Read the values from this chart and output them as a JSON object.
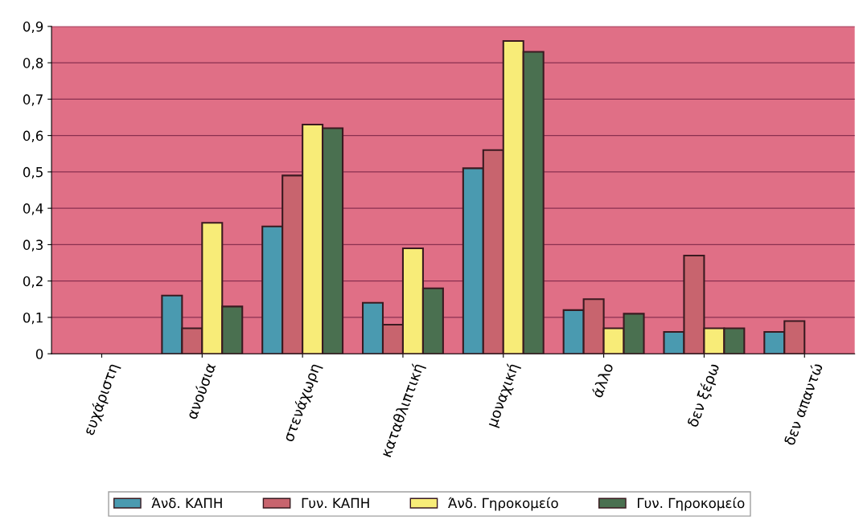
{
  "chart_data": {
    "type": "bar",
    "categories": [
      "ευχάριστη",
      "ανούσια",
      "στενάχωρη",
      "καταθλιπτική",
      "μοναχική",
      "άλλο",
      "δεν ξέρω",
      "δεν απαντώ"
    ],
    "series": [
      {
        "name": "Άνδ. ΚΑΠΗ",
        "color": "#4a9ab0",
        "values": [
          null,
          0.16,
          0.35,
          0.14,
          0.51,
          0.12,
          0.06,
          0.06
        ]
      },
      {
        "name": "Γυν. ΚΑΠΗ",
        "color": "#c8646e",
        "values": [
          null,
          0.07,
          0.49,
          0.08,
          0.56,
          0.15,
          0.27,
          0.09
        ]
      },
      {
        "name": "Άνδ. Γηροκομείο",
        "color": "#f8ec78",
        "values": [
          null,
          0.36,
          0.63,
          0.29,
          0.86,
          0.07,
          0.07,
          null
        ]
      },
      {
        "name": "Γυν. Γηροκομείο",
        "color": "#4a7050",
        "values": [
          null,
          0.13,
          0.62,
          0.18,
          0.83,
          0.11,
          0.07,
          null
        ]
      }
    ],
    "ylim": [
      0,
      0.9
    ],
    "yticks": [
      0,
      {
        "value": 0.1,
        "label": "0,1"
      },
      {
        "value": 0.2,
        "label": "0,2"
      },
      {
        "value": 0.3,
        "label": "0,3"
      },
      {
        "value": 0.4,
        "label": "0,4"
      },
      {
        "value": 0.5,
        "label": "0,5"
      },
      {
        "value": 0.6,
        "label": "0,6"
      },
      {
        "value": 0.7,
        "label": "0,7"
      },
      {
        "value": 0.8,
        "label": "0,8"
      },
      {
        "value": 0.9,
        "label": "0,9"
      }
    ],
    "grid": "y",
    "legend": "bottom"
  }
}
